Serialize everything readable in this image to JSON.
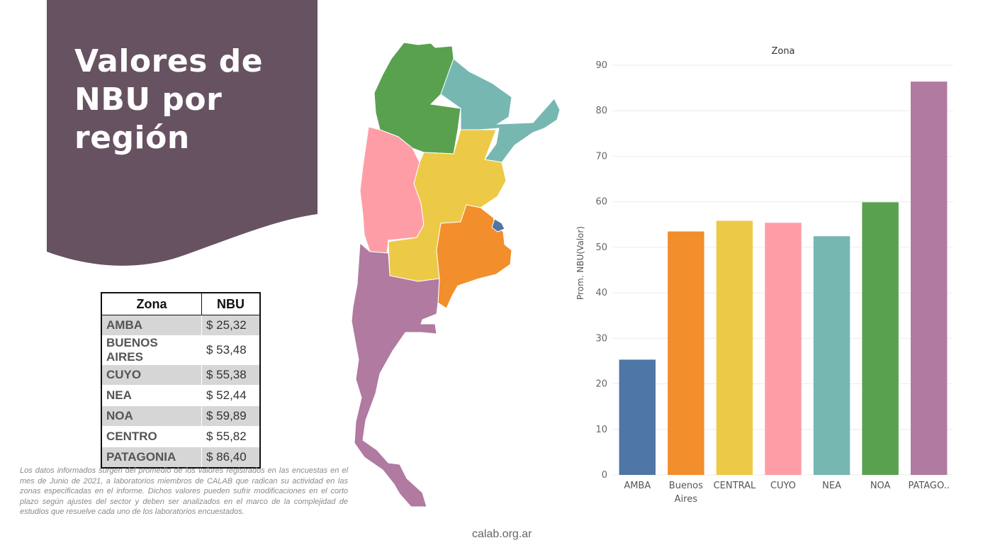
{
  "header": {
    "title": "Valores de NBU por región"
  },
  "table": {
    "headers": [
      "Zona",
      "NBU"
    ],
    "rows": [
      {
        "zona": "AMBA",
        "nbu": "$ 25,32"
      },
      {
        "zona": "BUENOS AIRES",
        "nbu": "$ 53,48"
      },
      {
        "zona": "CUYO",
        "nbu": "$ 55,38"
      },
      {
        "zona": "NEA",
        "nbu": "$ 52,44"
      },
      {
        "zona": "NOA",
        "nbu": "$ 59,89"
      },
      {
        "zona": "CENTRO",
        "nbu": "$ 55,82"
      },
      {
        "zona": "PATAGONIA",
        "nbu": "$ 86,40"
      }
    ]
  },
  "footnote": "Los datos informados surgen del promedio de los valores registrados en las encuestas en el mes de Junio de 2021, a laboratorios miembros de CALAB que radican su actividad en las zonas especificadas en el informe. Dichos valores pueden sufrir modificaciones en el corto plazo según ajustes del sector y deben ser analizados en el marco de la complejidad de estudios que resuelve cada uno de los laboratorios encuestados.",
  "site": "calab.org.ar",
  "colors": {
    "panel": "#675261",
    "amba": "#4e76a6",
    "buenos_aires": "#f28e2b",
    "central": "#edc948",
    "cuyo": "#ff9da7",
    "nea": "#76b7b2",
    "noa": "#59a14f",
    "patagonia": "#b07aa1"
  },
  "chart_data": {
    "type": "bar",
    "title": "Zona",
    "ylabel": "Prom. NBU(Valor)",
    "xlabel": "",
    "categories": [
      "AMBA",
      "Buenos Aires",
      "CENTRAL",
      "CUYO",
      "NEA",
      "NOA",
      "PATAGO.."
    ],
    "values": [
      25.32,
      53.48,
      55.82,
      55.38,
      52.44,
      59.89,
      86.4
    ],
    "colors": [
      "#4e76a6",
      "#f28e2b",
      "#edc948",
      "#ff9da7",
      "#76b7b2",
      "#59a14f",
      "#b07aa1"
    ],
    "ylim": [
      0,
      90
    ],
    "yticks": [
      0,
      10,
      20,
      30,
      40,
      50,
      60,
      70,
      80,
      90
    ],
    "grid": true,
    "legend": "none"
  }
}
